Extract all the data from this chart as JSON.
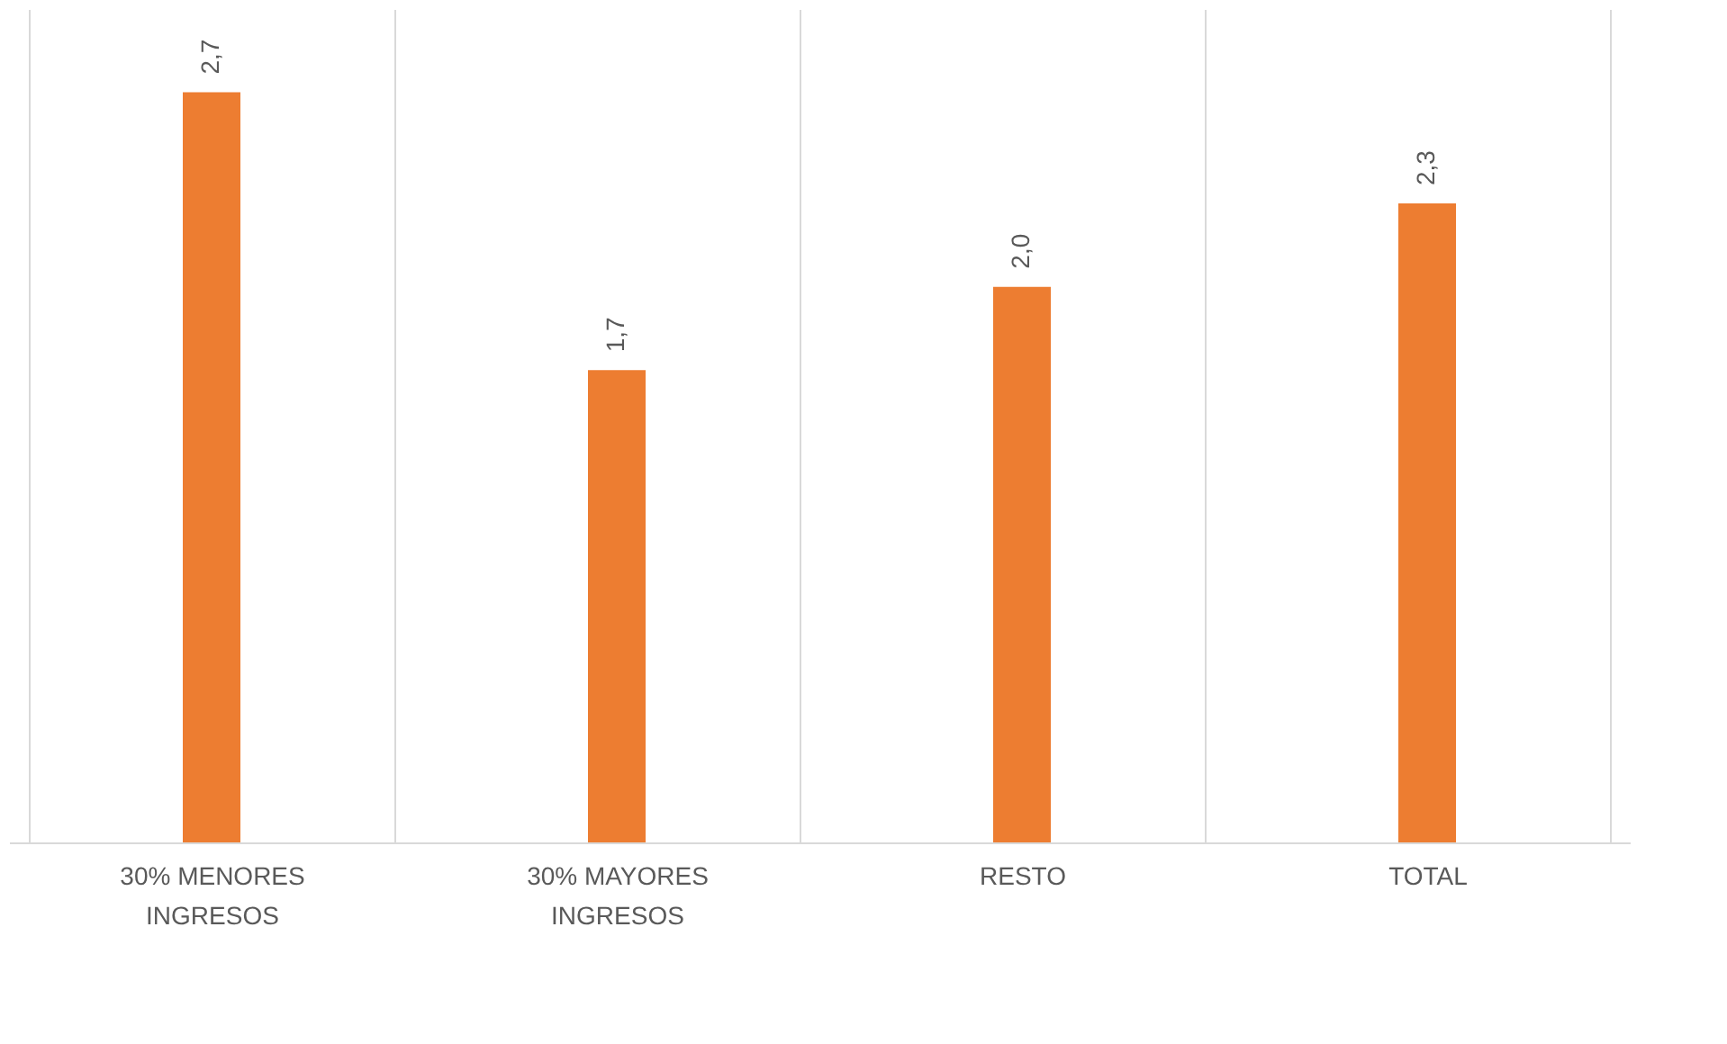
{
  "chart_data": {
    "type": "bar",
    "categories": [
      "30% MENORES INGRESOS",
      "30% MAYORES INGRESOS",
      "RESTO",
      "TOTAL"
    ],
    "values": [
      2.7,
      1.7,
      2.0,
      2.3
    ],
    "value_labels": [
      "2,7",
      "1,7",
      "2,0",
      "2,3"
    ],
    "color": "#ed7d31",
    "ylim": [
      0,
      3
    ],
    "grid": "x"
  }
}
